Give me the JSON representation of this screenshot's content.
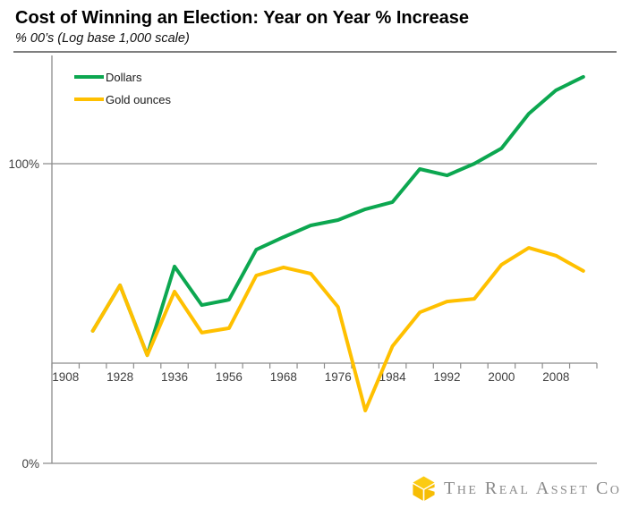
{
  "header": {
    "title": "Cost of Winning an Election: Year on Year % Increase",
    "subtitle": "% 00’s (Log base 1,000 scale)"
  },
  "chart_data": {
    "type": "line",
    "title": "Cost of Winning an Election: Year on Year % Increase",
    "subtitle": "% 00’s (Log base 1,000 scale)",
    "y_axis": {
      "tick_labels": [
        "0%",
        "100%"
      ],
      "scale_note": "Log base 1,000 scale; series values estimated linearly between the 0% and 100% gridlines",
      "grid": "horizontal gridlines at 0% and 100% only"
    },
    "x_axis": {
      "visible_tick_labels": [
        "1908",
        "1928",
        "1936",
        "1956",
        "1968",
        "1976",
        "1984",
        "1992",
        "2000",
        "2008"
      ],
      "note": "category axis, 20 slots, label shown on every other slot"
    },
    "categories": [
      "1908",
      "",
      "1928",
      "",
      "1936",
      "",
      "1956",
      "",
      "1968",
      "",
      "1976",
      "",
      "1984",
      "",
      "1992",
      "",
      "2000",
      "",
      "2008",
      ""
    ],
    "series": [
      {
        "name": "Dollars",
        "color": "#0CA750",
        "values": [
          null,
          44.2,
          59.4,
          36.1,
          65.7,
          52.8,
          54.6,
          71.3,
          75.5,
          79.4,
          81.2,
          84.8,
          87.2,
          98.2,
          96.1,
          100.0,
          105.1,
          116.7,
          124.5,
          129.0
        ]
      },
      {
        "name": "Gold ounces",
        "color": "#FFC000",
        "values": [
          null,
          44.2,
          59.4,
          36.1,
          57.3,
          43.6,
          45.1,
          62.7,
          65.4,
          63.3,
          52.2,
          17.6,
          39.1,
          50.4,
          54.0,
          54.9,
          66.3,
          71.9,
          69.3,
          64.2
        ]
      }
    ],
    "legend_position": "inside top-left"
  },
  "footer": {
    "brand": "The Real Asset Co"
  },
  "colors": {
    "dollars_line": "#0CA750",
    "gold_line": "#FFC000",
    "grid": "#8c8c8c",
    "axis": "#8c8c8c",
    "tick_text": "#3f3f3f",
    "logo_gold_light": "#FBCB12",
    "logo_gold": "#F6BD05",
    "brand_text": "#8a8a8a"
  }
}
